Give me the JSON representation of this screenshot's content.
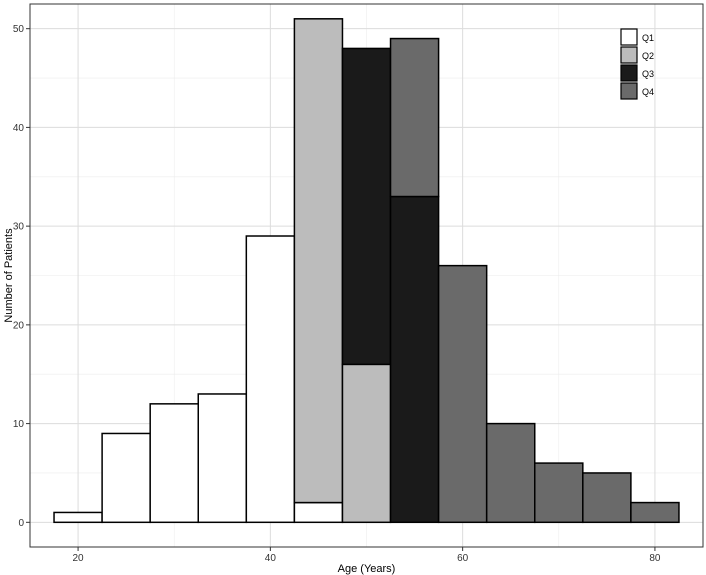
{
  "chart_data": {
    "type": "bar",
    "subtype": "stacked-histogram",
    "xlabel": "Age (Years)",
    "ylabel": "Number of Patients",
    "xlim": [
      15,
      85
    ],
    "ylim": [
      -2.5,
      52.5
    ],
    "x_ticks": [
      20,
      40,
      60,
      80
    ],
    "y_ticks": [
      0,
      10,
      20,
      30,
      40,
      50
    ],
    "grid": true,
    "legend_position": "top-right",
    "bins": [
      [
        17.5,
        22.5
      ],
      [
        22.5,
        27.5
      ],
      [
        27.5,
        32.5
      ],
      [
        32.5,
        37.5
      ],
      [
        37.5,
        42.5
      ],
      [
        42.5,
        47.5
      ],
      [
        47.5,
        52.5
      ],
      [
        52.5,
        57.5
      ],
      [
        57.5,
        62.5
      ],
      [
        62.5,
        67.5
      ],
      [
        67.5,
        72.5
      ],
      [
        72.5,
        77.5
      ],
      [
        77.5,
        82.5
      ]
    ],
    "series": [
      {
        "name": "Q1",
        "color": "#ffffff",
        "values": [
          1,
          9,
          12,
          13,
          29,
          2,
          0,
          0,
          0,
          0,
          0,
          0,
          0
        ]
      },
      {
        "name": "Q2",
        "color": "#bcbcbc",
        "values": [
          0,
          0,
          0,
          0,
          0,
          49,
          16,
          0,
          0,
          0,
          0,
          0,
          0
        ]
      },
      {
        "name": "Q3",
        "color": "#1a1a1a",
        "values": [
          0,
          0,
          0,
          0,
          0,
          0,
          32,
          33,
          0,
          0,
          0,
          0,
          0
        ]
      },
      {
        "name": "Q4",
        "color": "#6a6a6a",
        "values": [
          0,
          0,
          0,
          0,
          0,
          0,
          0,
          16,
          26,
          10,
          6,
          5,
          2
        ]
      }
    ]
  }
}
